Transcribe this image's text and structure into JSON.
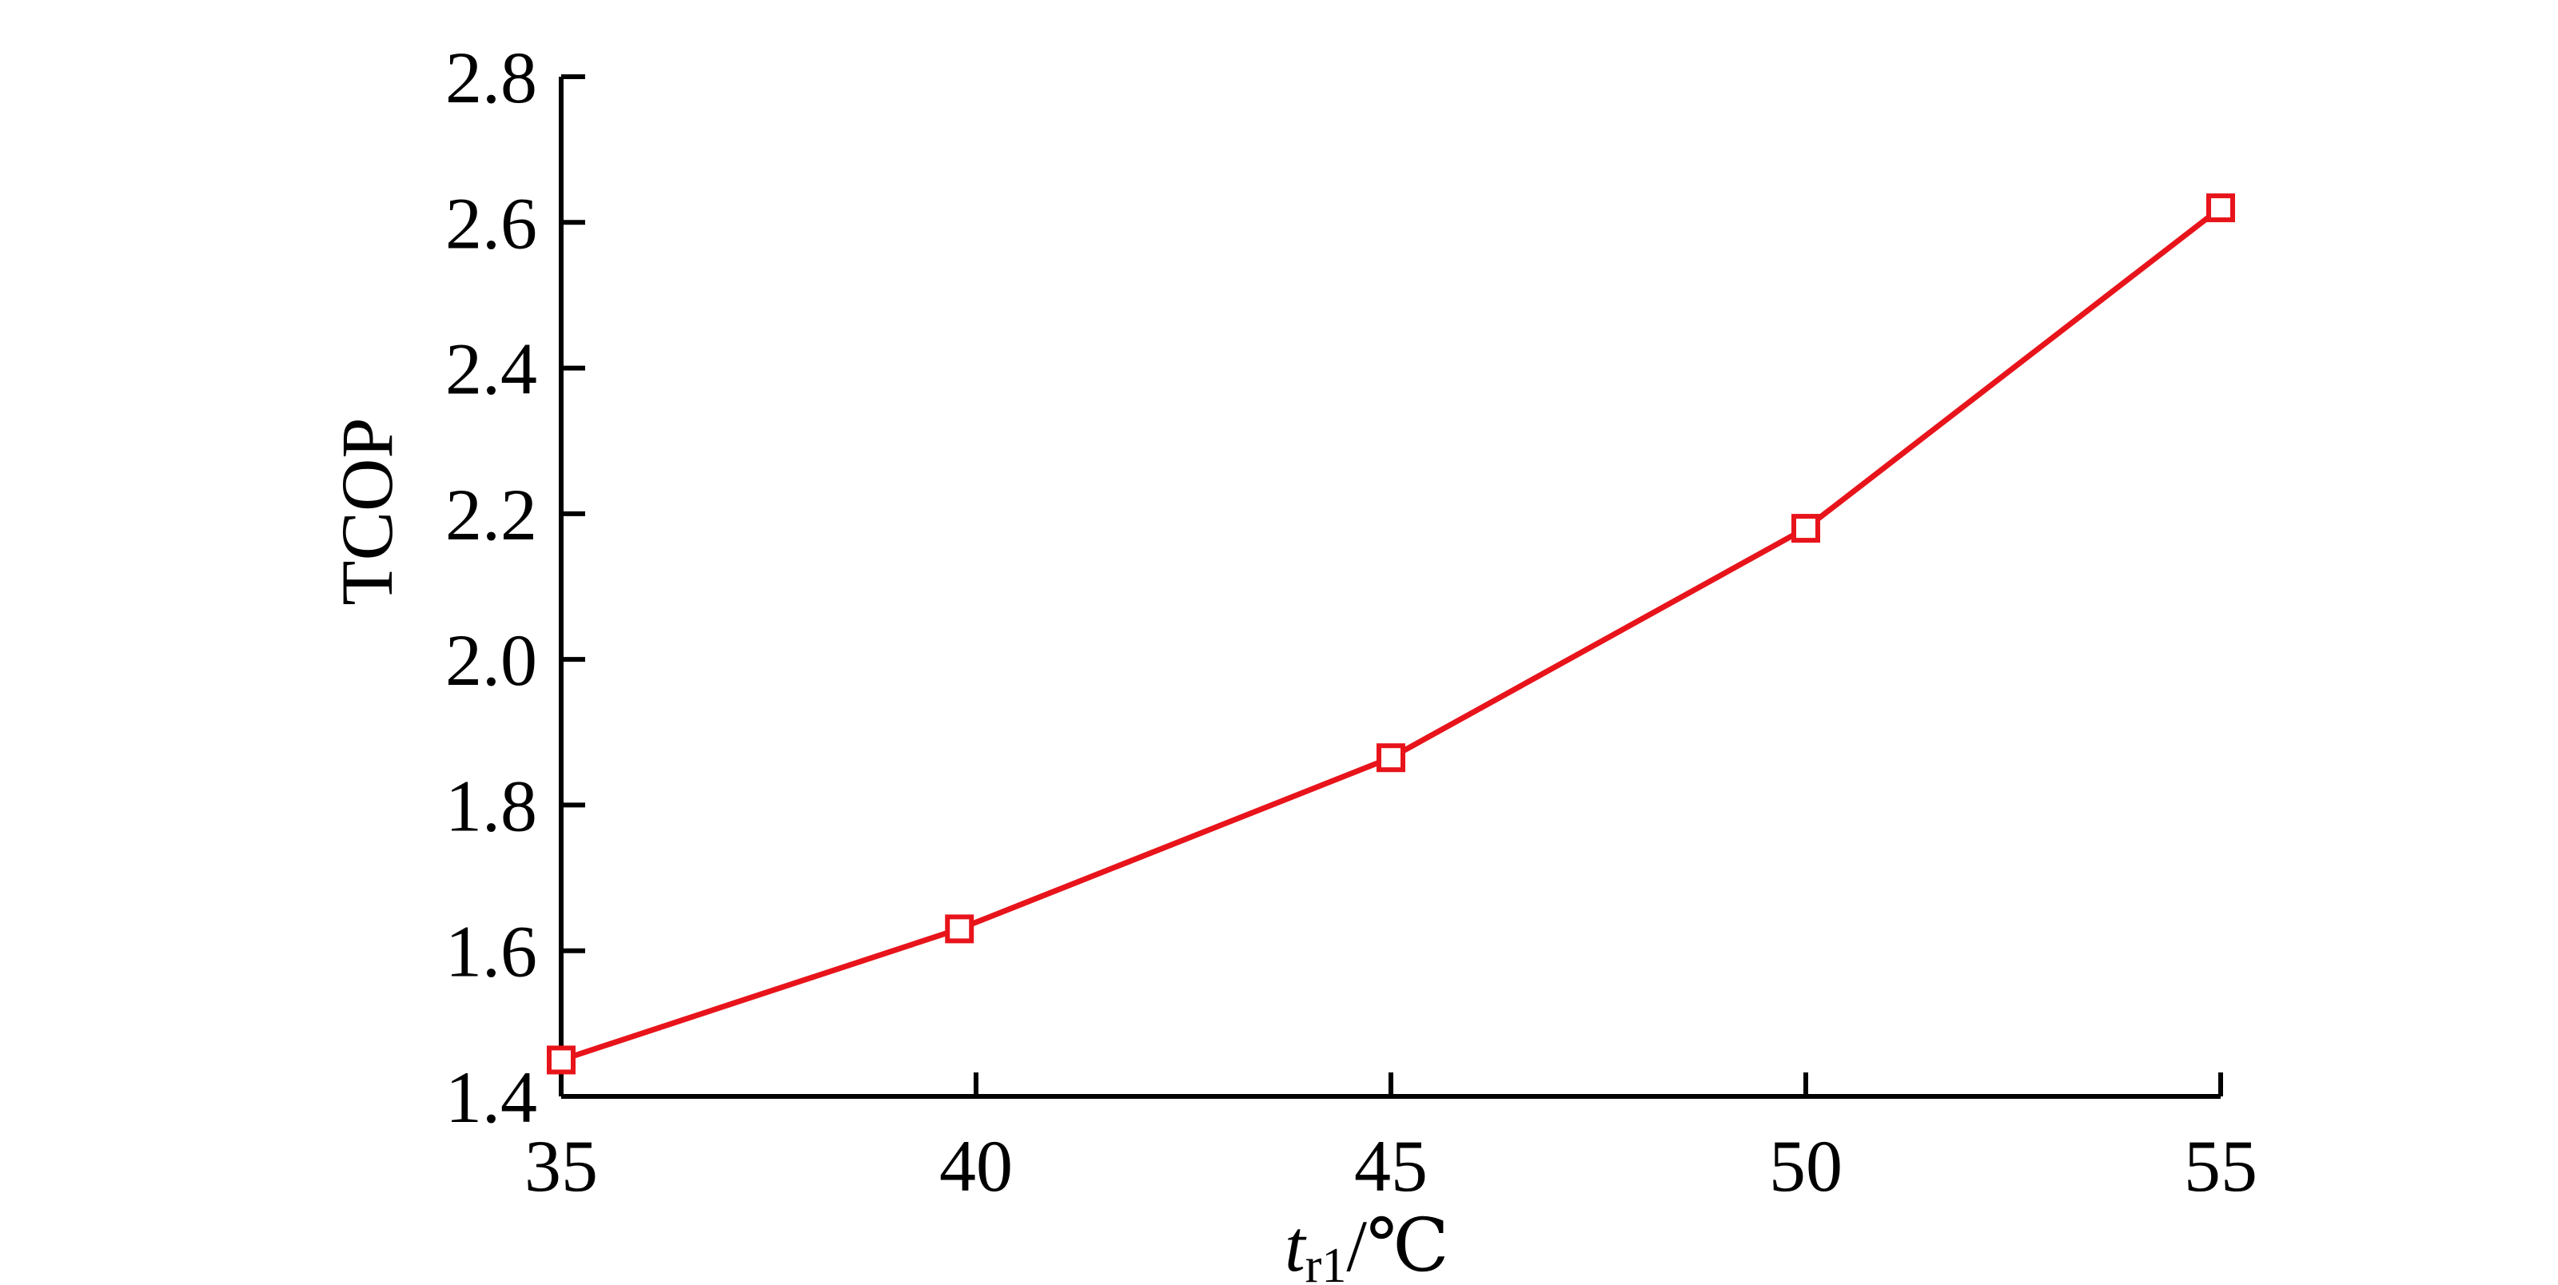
{
  "chart_data": {
    "type": "line",
    "title": "",
    "xlabel": {
      "main": "t",
      "sub": "r1",
      "unit": "/℃"
    },
    "ylabel": "TCOP",
    "xlim": [
      35,
      55
    ],
    "ylim": [
      1.4,
      2.8
    ],
    "xticks": [
      "35",
      "40",
      "45",
      "50",
      "55"
    ],
    "yticks": [
      "1.4",
      "1.6",
      "1.8",
      "2.0",
      "2.2",
      "2.4",
      "2.6",
      "2.8"
    ],
    "grid": false,
    "legend": "none",
    "series": [
      {
        "color": "#e8141b",
        "marker": "square-open",
        "x": [
          35,
          39.8,
          45,
          50,
          55
        ],
        "y": [
          1.45,
          1.63,
          1.865,
          2.18,
          2.62
        ]
      }
    ]
  }
}
